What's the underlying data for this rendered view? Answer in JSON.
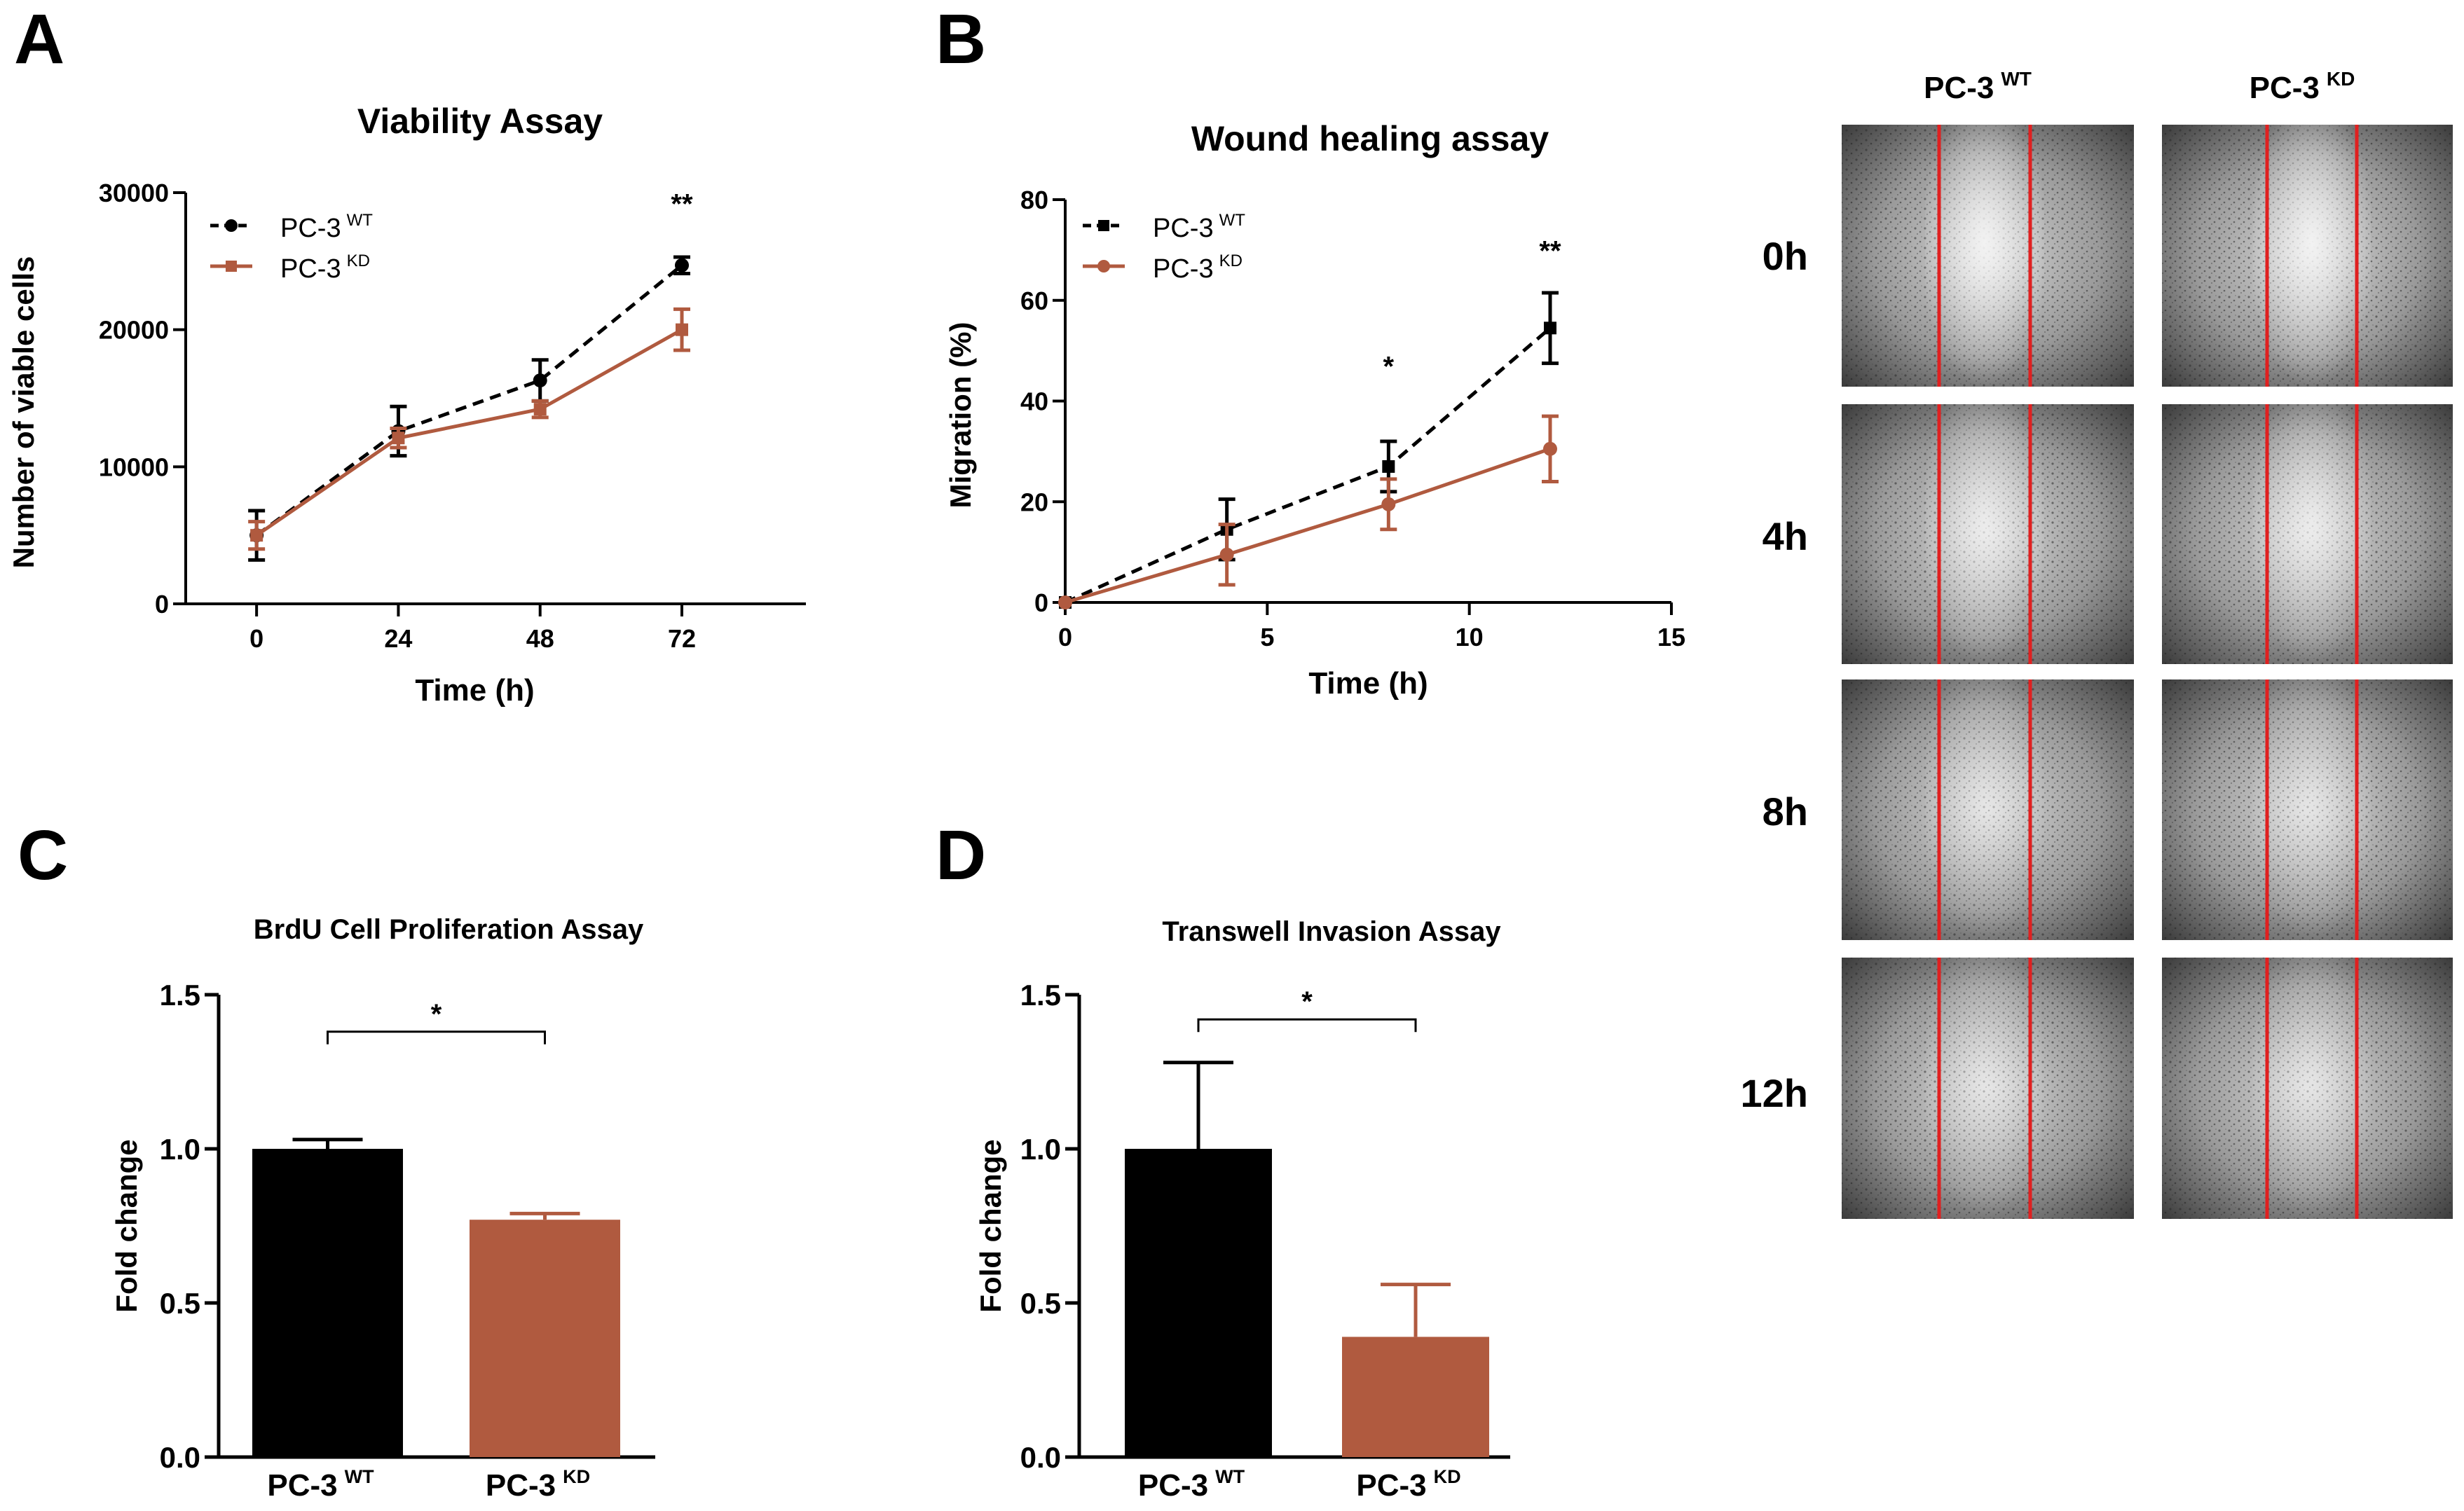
{
  "panels": {
    "A": {
      "letter": "A"
    },
    "B": {
      "letter": "B"
    },
    "C": {
      "letter": "C"
    },
    "D": {
      "letter": "D"
    }
  },
  "colors": {
    "wt": "#000000",
    "kd": "#b05a3f",
    "microscopy_line": "#e02020"
  },
  "microscopy": {
    "col_wt": {
      "base": "PC-3",
      "sup": "WT"
    },
    "col_kd": {
      "base": "PC-3",
      "sup": "KD"
    },
    "rows": [
      "0h",
      "4h",
      "8h",
      "12h"
    ]
  },
  "chart_data": [
    {
      "id": "A",
      "type": "line",
      "title": "Viability Assay",
      "xlabel": "Time (h)",
      "ylabel": "Number of viable cells",
      "x": [
        0,
        24,
        48,
        72
      ],
      "xticks": [
        "0",
        "24",
        "48",
        "72"
      ],
      "ylim": [
        0,
        30000
      ],
      "yticks": [
        "0",
        "10000",
        "20000",
        "30000"
      ],
      "series": [
        {
          "name": "PC-3",
          "sup": "WT",
          "values": [
            5000,
            12600,
            16300,
            24700
          ],
          "errors": [
            1800,
            1800,
            1500,
            600
          ],
          "style": "dashed",
          "marker": "circle"
        },
        {
          "name": "PC-3",
          "sup": "KD",
          "values": [
            5000,
            12100,
            14200,
            20000
          ],
          "errors": [
            1000,
            700,
            600,
            1500
          ],
          "style": "solid",
          "marker": "square"
        }
      ],
      "annotations": [
        {
          "x": 72,
          "y": 28500,
          "text": "**"
        }
      ]
    },
    {
      "id": "B",
      "type": "line",
      "title": "Wound healing assay",
      "xlabel": "Time (h)",
      "ylabel": "Migration (%)",
      "x": [
        0,
        4,
        8,
        12
      ],
      "xticks": [
        "0",
        "5",
        "10",
        "15"
      ],
      "xlim": [
        0,
        15
      ],
      "ylim": [
        0,
        80
      ],
      "yticks": [
        "0",
        "20",
        "40",
        "60",
        "80"
      ],
      "series": [
        {
          "name": "PC-3",
          "sup": "WT",
          "values": [
            0,
            14.5,
            27,
            54.5
          ],
          "errors": [
            0,
            6,
            5,
            7
          ],
          "style": "dashed",
          "marker": "square"
        },
        {
          "name": "PC-3",
          "sup": "KD",
          "values": [
            0,
            9.5,
            19.5,
            30.5
          ],
          "errors": [
            0,
            6,
            5,
            6.5
          ],
          "style": "solid",
          "marker": "circle"
        }
      ],
      "annotations": [
        {
          "x": 8,
          "y": 45,
          "text": "*"
        },
        {
          "x": 12,
          "y": 68,
          "text": "**"
        }
      ]
    },
    {
      "id": "C",
      "type": "bar",
      "title": "BrdU Cell Proliferation Assay",
      "xlabel": "",
      "ylabel": "Fold change",
      "categories": [
        {
          "base": "PC-3",
          "sup": "WT"
        },
        {
          "base": "PC-3",
          "sup": "KD"
        }
      ],
      "values": [
        1.0,
        0.77
      ],
      "errors": [
        0.03,
        0.02
      ],
      "ylim": [
        0,
        1.5
      ],
      "yticks": [
        "0.0",
        "0.5",
        "1.0",
        "1.5"
      ],
      "significance": {
        "text": "*",
        "y": 1.38
      }
    },
    {
      "id": "D",
      "type": "bar",
      "title": "Transwell Invasion Assay",
      "xlabel": "",
      "ylabel": "Fold change",
      "categories": [
        {
          "base": "PC-3",
          "sup": "WT"
        },
        {
          "base": "PC-3",
          "sup": "KD"
        }
      ],
      "values": [
        1.0,
        0.39
      ],
      "errors": [
        0.28,
        0.17
      ],
      "ylim": [
        0,
        1.5
      ],
      "yticks": [
        "0.0",
        "0.5",
        "1.0",
        "1.5"
      ],
      "significance": {
        "text": "*",
        "y": 1.42
      }
    }
  ]
}
